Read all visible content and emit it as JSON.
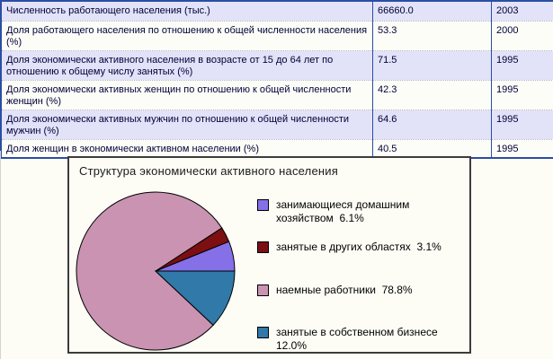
{
  "table": {
    "rows": [
      {
        "label": "Численность работающего населения (тыс.)",
        "value": "66660.0",
        "year": "2003"
      },
      {
        "label": "Доля работающего  населения по отношению к общей численности населения (%)",
        "value": "53.3",
        "year": "2000"
      },
      {
        "label": "Доля экономически активного населения в возрасте от 15 до 64 лет по отношению к общему числу занятых (%)",
        "value": "71.5",
        "year": "1995"
      },
      {
        "label": "Доля экономически активных женщин по отношению к общей численности женщин (%)",
        "value": "42.3",
        "year": "1995"
      },
      {
        "label": "Доля экономически активных мужчин по отношению к общей численности мужчин (%)",
        "value": "64.6",
        "year": "1995"
      },
      {
        "label": "Доля женщин в экономически активном населении (%)",
        "value": "40.5",
        "year": "1995"
      }
    ],
    "colors": {
      "border": "#2B4EA2",
      "row_alt_bg": "#E2E2F8",
      "row_bg": "#FDFDF8",
      "text": "#000038"
    }
  },
  "chart_data": {
    "type": "pie",
    "title": "Структура экономически активного населения",
    "slices": [
      {
        "label": "занимающиеся домашним хозяйством",
        "value": 6.1,
        "display": "6.1%",
        "color": "#8570E8"
      },
      {
        "label": "занятые в других областях",
        "value": 3.1,
        "display": "3.1%",
        "color": "#7B0F12"
      },
      {
        "label": "наемные работники",
        "value": 78.8,
        "display": "78.8%",
        "color": "#C993B1"
      },
      {
        "label": "занятые в собственном бизнесе",
        "value": 12.0,
        "display": "12.0%",
        "color": "#3079A8"
      }
    ],
    "start_angle_deg": 0,
    "direction": "counterclockwise",
    "legend_position": "right",
    "outline_color": "#000000",
    "panel_border_color": "#3C3C3C"
  }
}
